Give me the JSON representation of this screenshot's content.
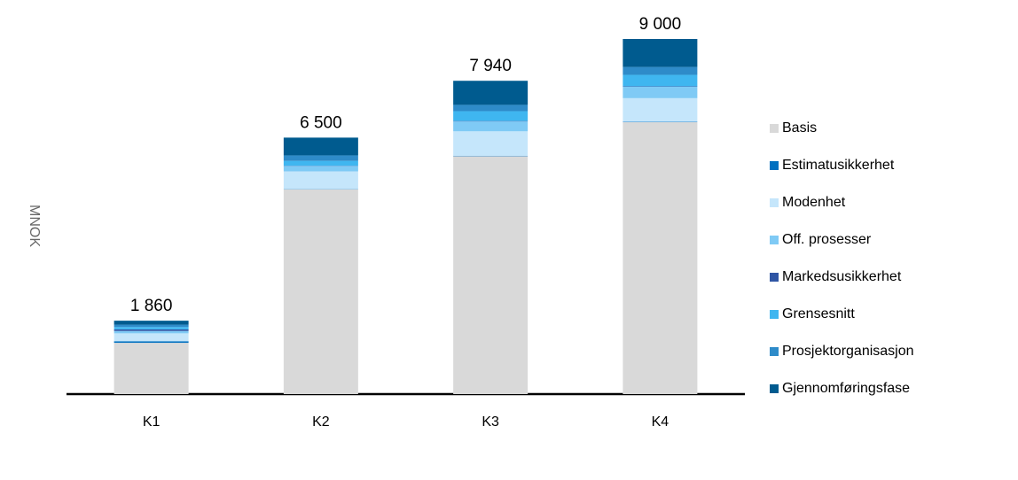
{
  "chart_data": {
    "type": "stacked_bar",
    "y_axis_label": "MNOK",
    "categories": [
      "K1",
      "K2",
      "K3",
      "K4"
    ],
    "series": [
      {
        "name": "Basis",
        "color": "#d9d9d9",
        "values": [
          1300,
          5190,
          6030,
          6890
        ]
      },
      {
        "name": "Estimatusikkerhet",
        "color": "#0070c0",
        "values": [
          40,
          5,
          10,
          10
        ]
      },
      {
        "name": "Modenhet",
        "color": "#c5e6fb",
        "values": [
          200,
          450,
          620,
          600
        ]
      },
      {
        "name": "Off. prosesser",
        "color": "#7fcaf5",
        "values": [
          60,
          140,
          250,
          290
        ]
      },
      {
        "name": "Markedsusikkerhet",
        "color": "#2f55a4",
        "values": [
          40,
          5,
          10,
          10
        ]
      },
      {
        "name": "Grensesnitt",
        "color": "#3fb6f0",
        "values": [
          60,
          120,
          250,
          290
        ]
      },
      {
        "name": "Prosjektorganisasjon",
        "color": "#2e8bc9",
        "values": [
          60,
          140,
          160,
          200
        ]
      },
      {
        "name": "Gjennomføringsfase",
        "color": "#005b8f",
        "values": [
          100,
          450,
          610,
          710
        ]
      }
    ],
    "totals": {
      "values": [
        1860,
        6500,
        7940,
        9000
      ],
      "value_labels": [
        "1 860",
        "6 500",
        "7 940",
        "9 000"
      ]
    },
    "legend": "right"
  }
}
